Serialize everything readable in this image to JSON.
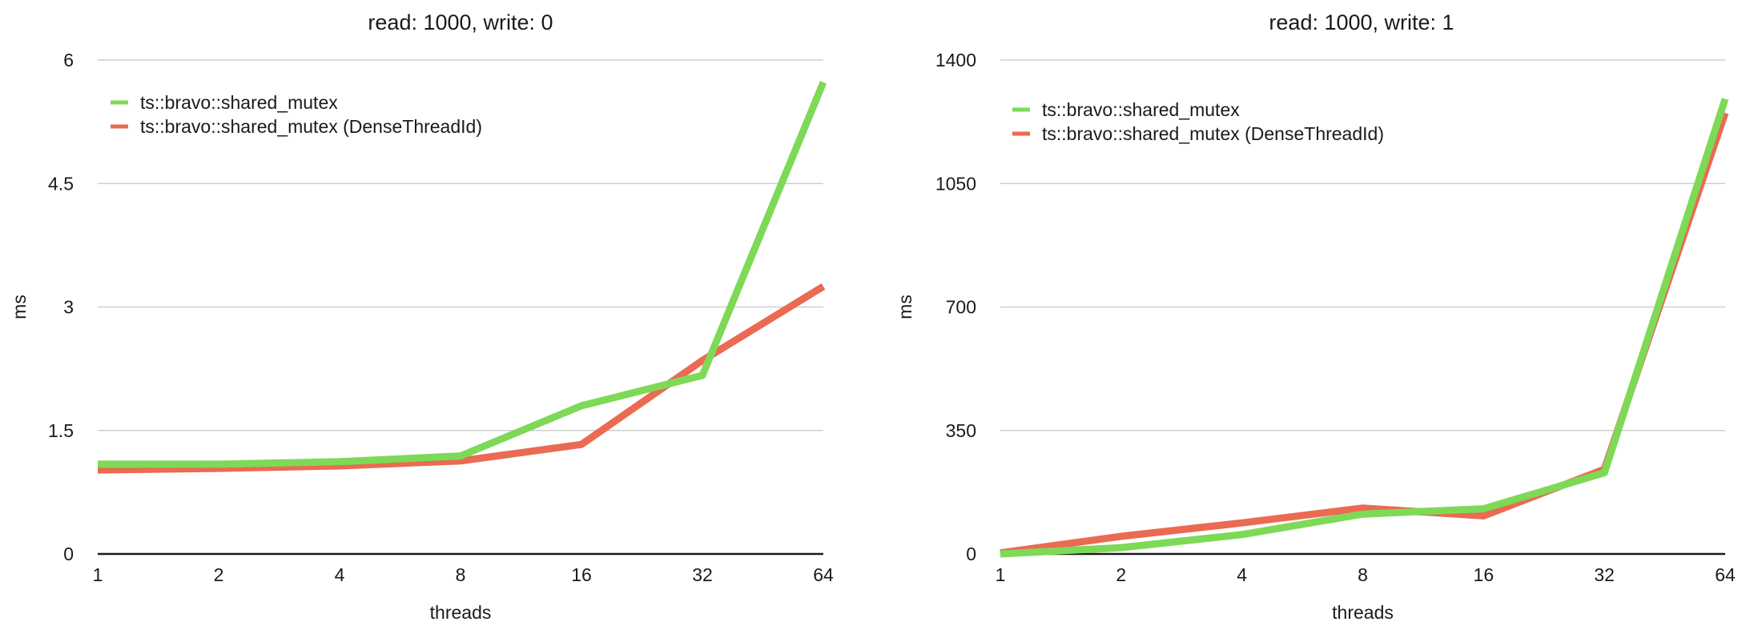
{
  "colors": {
    "green": "#7ed957",
    "red": "#ea6a52"
  },
  "chart_data": [
    {
      "type": "line",
      "title": "read: 1000, write: 0",
      "xlabel": "threads",
      "ylabel": "ms",
      "categories": [
        "1",
        "2",
        "4",
        "8",
        "16",
        "32",
        "64"
      ],
      "ylim": [
        0,
        6
      ],
      "yticks": [
        "0",
        "1.5",
        "3",
        "4.5",
        "6"
      ],
      "ytick_values": [
        0,
        1.5,
        3,
        4.5,
        6
      ],
      "grid": true,
      "legend_position": "top-left",
      "series": [
        {
          "name": "ts::bravo::shared_mutex (DenseThreadId)",
          "color": "#ea6a52",
          "values": [
            1.02,
            1.04,
            1.07,
            1.13,
            1.33,
            2.35,
            3.25
          ]
        },
        {
          "name": "ts::bravo::shared_mutex",
          "color": "#7ed957",
          "values": [
            1.09,
            1.09,
            1.12,
            1.19,
            1.8,
            2.17,
            5.73
          ]
        }
      ],
      "legend_order": [
        1,
        0
      ]
    },
    {
      "type": "line",
      "title": "read: 1000, write: 1",
      "xlabel": "threads",
      "ylabel": "ms",
      "categories": [
        "1",
        "2",
        "4",
        "8",
        "16",
        "32",
        "64"
      ],
      "ylim": [
        0,
        1400
      ],
      "yticks": [
        "0",
        "350",
        "700",
        "1050",
        "1400"
      ],
      "ytick_values": [
        0,
        350,
        700,
        1050,
        1400
      ],
      "grid": true,
      "legend_position": "top-left",
      "series": [
        {
          "name": "ts::bravo::shared_mutex (DenseThreadId)",
          "color": "#ea6a52",
          "values": [
            3,
            50,
            88,
            130,
            108,
            240,
            1250
          ]
        },
        {
          "name": "ts::bravo::shared_mutex",
          "color": "#7ed957",
          "values": [
            0,
            18,
            55,
            113,
            128,
            230,
            1290
          ]
        }
      ],
      "legend_order": [
        1,
        0
      ]
    }
  ]
}
